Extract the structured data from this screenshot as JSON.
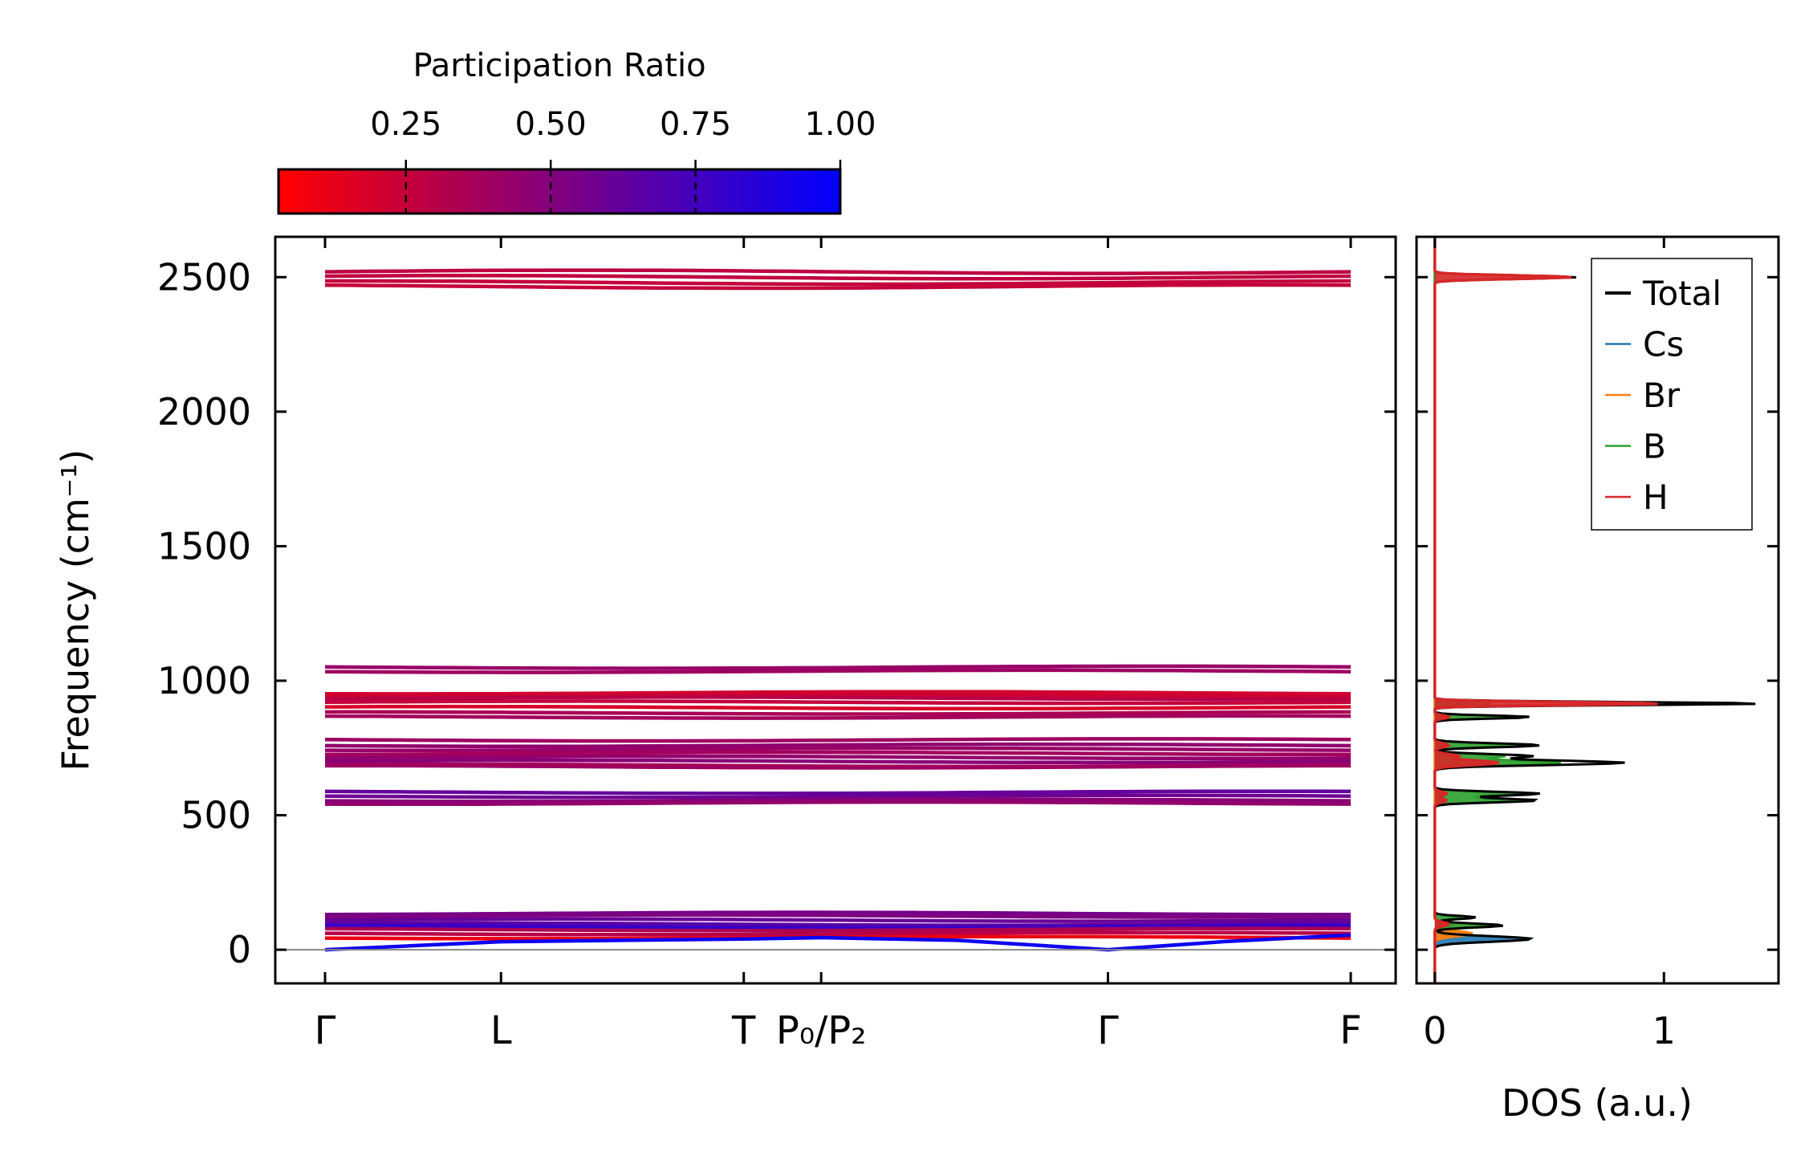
{
  "chart_data": [
    {
      "type": "line",
      "subtype": "phonon-band-structure",
      "title": "",
      "xlabel": "",
      "ylabel": "Frequency (cm⁻¹)",
      "ylim": [
        -125,
        2650
      ],
      "yticks": [
        0,
        500,
        1000,
        1500,
        2000,
        2500
      ],
      "kpath": [
        {
          "label": "Γ",
          "pos": 0.0
        },
        {
          "label": "L",
          "pos": 1.0
        },
        {
          "label": "T",
          "pos": 2.38
        },
        {
          "label": "P₀/P₂",
          "pos": 2.82
        },
        {
          "label": "Γ",
          "pos": 4.45
        },
        {
          "label": "F",
          "pos": 5.83
        }
      ],
      "bands_approx": [
        {
          "freq": 2520,
          "pr": 0.28
        },
        {
          "freq": 2500,
          "pr": 0.27
        },
        {
          "freq": 2480,
          "pr": 0.26
        },
        {
          "freq": 2465,
          "pr": 0.25
        },
        {
          "freq": 1050,
          "pr": 0.42
        },
        {
          "freq": 1035,
          "pr": 0.4
        },
        {
          "freq": 955,
          "pr": 0.2
        },
        {
          "freq": 945,
          "pr": 0.22
        },
        {
          "freq": 935,
          "pr": 0.3
        },
        {
          "freq": 920,
          "pr": 0.26
        },
        {
          "freq": 900,
          "pr": 0.18
        },
        {
          "freq": 880,
          "pr": 0.35
        },
        {
          "freq": 865,
          "pr": 0.38
        },
        {
          "freq": 780,
          "pr": 0.4
        },
        {
          "freq": 760,
          "pr": 0.45
        },
        {
          "freq": 745,
          "pr": 0.42
        },
        {
          "freq": 730,
          "pr": 0.38
        },
        {
          "freq": 715,
          "pr": 0.44
        },
        {
          "freq": 700,
          "pr": 0.48
        },
        {
          "freq": 685,
          "pr": 0.36
        },
        {
          "freq": 680,
          "pr": 0.4
        },
        {
          "freq": 585,
          "pr": 0.62
        },
        {
          "freq": 570,
          "pr": 0.58
        },
        {
          "freq": 555,
          "pr": 0.48
        },
        {
          "freq": 545,
          "pr": 0.44
        },
        {
          "freq": 135,
          "pr": 0.55
        },
        {
          "freq": 125,
          "pr": 0.52
        },
        {
          "freq": 110,
          "pr": 0.6
        },
        {
          "freq": 95,
          "pr": 0.66
        },
        {
          "freq": 85,
          "pr": 0.8
        },
        {
          "freq": 75,
          "pr": 0.35
        },
        {
          "freq": 60,
          "pr": 0.3
        },
        {
          "freq": 45,
          "pr": 0.1
        }
      ],
      "acoustic_branch": {
        "kpos": [
          0.0,
          1.0,
          2.38,
          2.82,
          3.6,
          4.45,
          5.1,
          5.83
        ],
        "freq": [
          0,
          30,
          40,
          45,
          35,
          0,
          30,
          55
        ],
        "pr": 0.95
      },
      "colorbar": {
        "label": "Participation Ratio",
        "ticks": [
          "0.25",
          "0.50",
          "0.75",
          "1.00"
        ],
        "tick_values": [
          0.25,
          0.5,
          0.75,
          1.0
        ],
        "range": [
          0.03,
          1.0
        ],
        "color_low": "#ff0000",
        "color_high": "#0000ff"
      }
    },
    {
      "type": "line",
      "subtype": "density-of-states",
      "xlabel": "DOS (a.u.)",
      "ylabel": "",
      "xlim": [
        -0.08,
        1.5
      ],
      "xticks": [
        0,
        1
      ],
      "ylim": [
        -125,
        2650
      ],
      "series": [
        {
          "name": "Total",
          "color": "#000000",
          "peaks": [
            [
              40,
              0.42,
              14
            ],
            [
              90,
              0.3,
              10
            ],
            [
              120,
              0.18,
              8
            ],
            [
              555,
              0.45,
              10
            ],
            [
              580,
              0.46,
              10
            ],
            [
              695,
              0.83,
              12
            ],
            [
              720,
              0.42,
              10
            ],
            [
              760,
              0.46,
              10
            ],
            [
              865,
              0.42,
              8
            ],
            [
              915,
              1.44,
              8
            ],
            [
              2500,
              0.62,
              9
            ]
          ]
        },
        {
          "name": "Cs",
          "color": "#1f77b4",
          "peaks": [
            [
              40,
              0.42,
              14
            ],
            [
              95,
              0.08,
              10
            ]
          ]
        },
        {
          "name": "Br",
          "color": "#ff7f0e",
          "peaks": [
            [
              60,
              0.16,
              14
            ],
            [
              100,
              0.05,
              10
            ]
          ]
        },
        {
          "name": "B",
          "color": "#2ca02c",
          "peaks": [
            [
              90,
              0.25,
              10
            ],
            [
              120,
              0.12,
              8
            ],
            [
              555,
              0.4,
              10
            ],
            [
              580,
              0.4,
              10
            ],
            [
              695,
              0.55,
              12
            ],
            [
              720,
              0.3,
              10
            ],
            [
              760,
              0.4,
              10
            ],
            [
              865,
              0.36,
              8
            ],
            [
              915,
              0.25,
              8
            ]
          ]
        },
        {
          "name": "H",
          "color": "#d62728",
          "peaks": [
            [
              95,
              0.06,
              10
            ],
            [
              555,
              0.05,
              10
            ],
            [
              580,
              0.05,
              10
            ],
            [
              695,
              0.28,
              12
            ],
            [
              720,
              0.1,
              10
            ],
            [
              760,
              0.06,
              10
            ],
            [
              865,
              0.06,
              8
            ],
            [
              915,
              1.0,
              8
            ],
            [
              2500,
              0.6,
              9
            ]
          ]
        }
      ],
      "legend": {
        "entries": [
          "Total",
          "Cs",
          "Br",
          "B",
          "H"
        ],
        "placement": "top-right"
      }
    }
  ]
}
